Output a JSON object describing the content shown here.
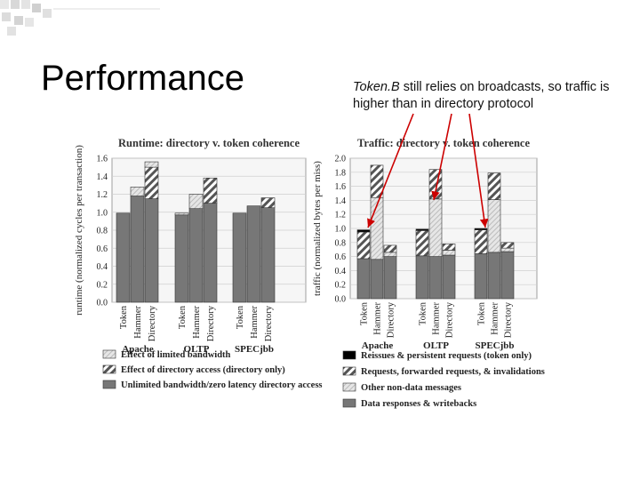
{
  "slide": {
    "title": "Performance",
    "note_em": "Token.B",
    "note_rest": " still relies on broadcasts, so traffic is higher than in directory protocol",
    "accent_color": "#cc0000"
  },
  "chart_data": [
    {
      "type": "bar",
      "stacked": true,
      "title": "Runtime: directory v. token coherence",
      "ylabel": "runtime (normalized cycles per transaction)",
      "ylim": [
        0,
        1.6
      ],
      "yticks": [
        "0.0",
        "0.2",
        "0.4",
        "0.6",
        "0.8",
        "1.0",
        "1.2",
        "1.4",
        "1.6"
      ],
      "groups": [
        "Apache",
        "OLTP",
        "SPECjbb"
      ],
      "bar_labels": [
        "Token",
        "Hammer",
        "Directory"
      ],
      "series": [
        {
          "name": "Unlimited bandwidth/zero latency directory access",
          "color": "#777777",
          "pattern": "solid"
        },
        {
          "name": "Effect of directory access (directory only)",
          "color": "#555555",
          "pattern": "hatch"
        },
        {
          "name": "Effect of limited bandwidth",
          "color": "#dddddd",
          "pattern": "light"
        }
      ],
      "values": [
        [
          [
            0.99,
            0,
            0
          ],
          [
            1.18,
            0,
            0.1
          ],
          [
            1.15,
            0.35,
            0.06
          ]
        ],
        [
          [
            0.97,
            0,
            0.02
          ],
          [
            1.04,
            0,
            0.16
          ],
          [
            1.1,
            0.28,
            0
          ]
        ],
        [
          [
            0.99,
            0,
            0
          ],
          [
            1.07,
            0,
            0
          ],
          [
            1.05,
            0.11,
            0
          ]
        ]
      ]
    },
    {
      "type": "bar",
      "stacked": true,
      "title": "Traffic: directory v. token coherence",
      "ylabel": "traffic (normalized bytes per miss)",
      "ylim": [
        0,
        2.0
      ],
      "yticks": [
        "0.0",
        "0.2",
        "0.4",
        "0.6",
        "0.8",
        "1.0",
        "1.2",
        "1.4",
        "1.6",
        "1.8",
        "2.0"
      ],
      "groups": [
        "Apache",
        "OLTP",
        "SPECjbb"
      ],
      "bar_labels": [
        "Token",
        "Hammer",
        "Directory"
      ],
      "series": [
        {
          "name": "Data responses & writebacks",
          "color": "#777777",
          "pattern": "solid"
        },
        {
          "name": "Other non-data messages",
          "color": "#dddddd",
          "pattern": "light"
        },
        {
          "name": "Requests, forwarded requests, & invalidations",
          "color": "#555555",
          "pattern": "hatch"
        },
        {
          "name": "Reissues & persistent requests (token only)",
          "color": "#000000",
          "pattern": "black"
        }
      ],
      "values": [
        [
          [
            0.57,
            0,
            0.38,
            0.03
          ],
          [
            0.56,
            0.88,
            0.46,
            0
          ],
          [
            0.6,
            0.06,
            0.1,
            0
          ]
        ],
        [
          [
            0.61,
            0,
            0.36,
            0.02
          ],
          [
            0.6,
            0.82,
            0.42,
            0
          ],
          [
            0.62,
            0.07,
            0.09,
            0
          ]
        ],
        [
          [
            0.64,
            0,
            0.34,
            0.02
          ],
          [
            0.66,
            0.75,
            0.38,
            0
          ],
          [
            0.67,
            0.05,
            0.08,
            0
          ]
        ]
      ]
    }
  ]
}
